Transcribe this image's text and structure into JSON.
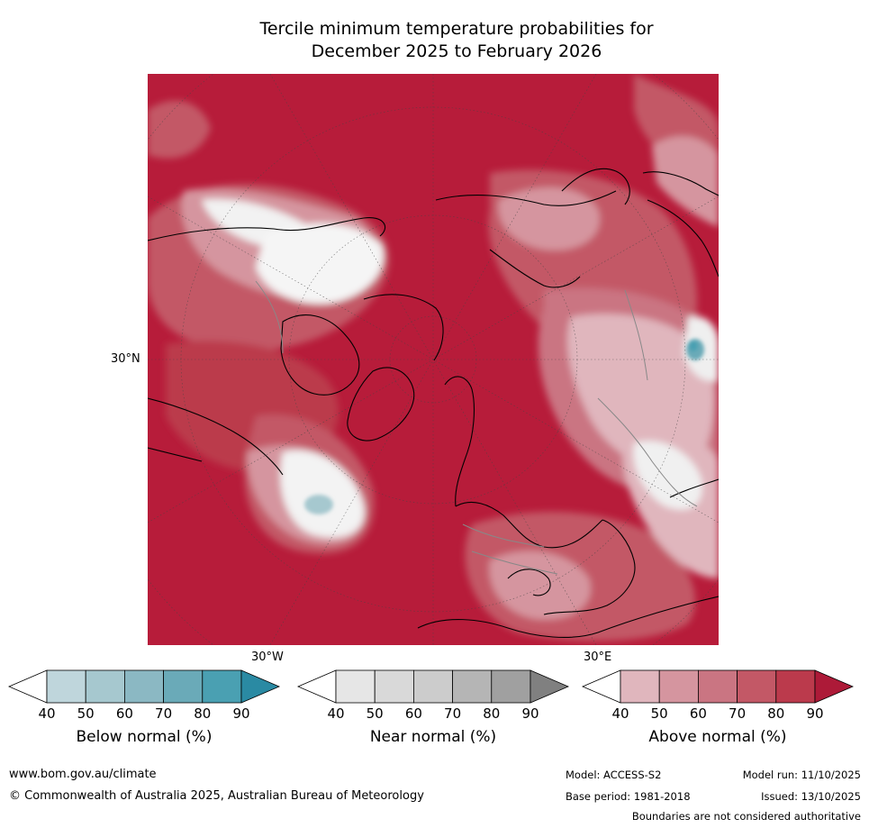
{
  "title": {
    "line1": "Tercile minimum temperature probabilities for",
    "line2": "December 2025 to February 2026"
  },
  "map": {
    "lat_label": "30°N",
    "lon_labels": [
      "30°W",
      "30°E"
    ]
  },
  "legends": [
    {
      "label": "Below normal (%)",
      "ticks": [
        "40",
        "50",
        "60",
        "70",
        "80",
        "90"
      ],
      "colors": [
        "#ffffff",
        "#bfd6dc",
        "#a6c8cf",
        "#8bb8c3",
        "#6aaab8",
        "#4aa0b2",
        "#2a8aa3"
      ]
    },
    {
      "label": "Near normal (%)",
      "ticks": [
        "40",
        "50",
        "60",
        "70",
        "80",
        "90"
      ],
      "colors": [
        "#ffffff",
        "#e6e6e6",
        "#d9d9d9",
        "#cccccc",
        "#b5b5b5",
        "#a0a0a0",
        "#808080"
      ]
    },
    {
      "label": "Above normal (%)",
      "ticks": [
        "40",
        "50",
        "60",
        "70",
        "80",
        "90"
      ],
      "colors": [
        "#ffffff",
        "#e0b6bd",
        "#d5959f",
        "#ca7582",
        "#c35866",
        "#bb3a4c",
        "#ad1a38"
      ]
    }
  ],
  "footer": {
    "website": "www.bom.gov.au/climate",
    "copyright": "© Commonwealth of Australia 2025, Australian Bureau of Meteorology",
    "model": "Model: ACCESS-S2",
    "base_period": "Base period: 1981-2018",
    "model_run": "Model run: 11/10/2025",
    "issued": "Issued: 13/10/2025",
    "disclaimer": "Boundaries are not considered authoritative"
  }
}
